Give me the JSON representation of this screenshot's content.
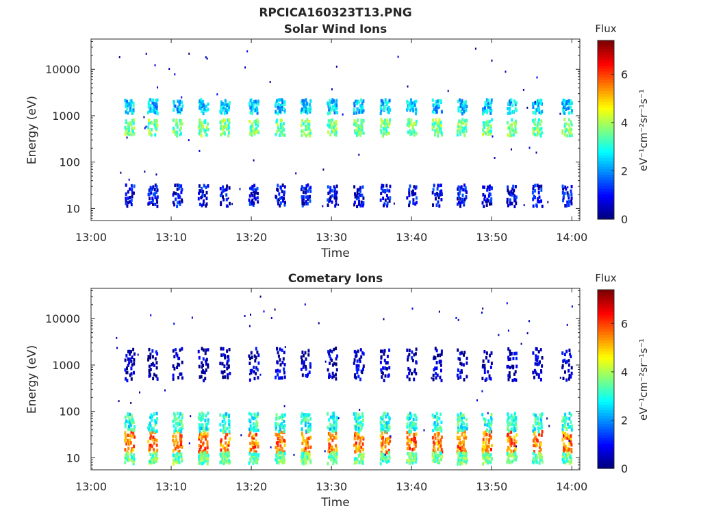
{
  "figure_title": "RPCICA160323T13.PNG",
  "panels": [
    {
      "title": "Solar Wind Ions",
      "xlabel": "Time",
      "ylabel": "Energy (eV)",
      "colorbar_title": "Flux",
      "colorbar_label": "eV⁻¹cm⁻²sr⁻¹s⁻¹"
    },
    {
      "title": "Cometary Ions",
      "xlabel": "Time",
      "ylabel": "Energy (eV)",
      "colorbar_title": "Flux",
      "colorbar_label": "eV⁻¹cm⁻²sr⁻¹s⁻¹"
    }
  ],
  "chart_data": [
    {
      "type": "heatmap",
      "title": "Solar Wind Ions",
      "xlabel": "Time",
      "ylabel": "Energy (eV)",
      "x_ticks": [
        "13:00",
        "13:10",
        "13:20",
        "13:30",
        "13:40",
        "13:50",
        "14:00"
      ],
      "xlim_minutes": [
        0,
        61
      ],
      "y_scale": "log",
      "y_ticks": [
        10,
        100,
        1000,
        10000
      ],
      "ylim": [
        5.5,
        45000
      ],
      "colorbar": {
        "title": "Flux",
        "range": [
          0,
          7.4
        ],
        "ticks": [
          0,
          2,
          4,
          6
        ],
        "colormap": "jet"
      },
      "sweep_times_min": [
        4.7,
        7.6,
        10.7,
        13.9,
        16.6,
        20.2,
        23.5,
        26.7,
        30.0,
        33.3,
        36.6,
        39.9,
        43.1,
        46.2,
        49.3,
        52.4,
        55.6,
        59.3
      ],
      "bands": [
        {
          "emin": 400,
          "emax": 900,
          "level": 3.6
        },
        {
          "emin": 1200,
          "emax": 2400,
          "level": 2.4
        },
        {
          "emin": 12,
          "emax": 35,
          "level": 0.8
        }
      ]
    },
    {
      "type": "heatmap",
      "title": "Cometary Ions",
      "xlabel": "Time",
      "ylabel": "Energy (eV)",
      "x_ticks": [
        "13:00",
        "13:10",
        "13:20",
        "13:30",
        "13:40",
        "13:50",
        "14:00"
      ],
      "xlim_minutes": [
        0,
        61
      ],
      "y_scale": "log",
      "y_ticks": [
        10,
        100,
        1000,
        10000
      ],
      "ylim": [
        5.5,
        45000
      ],
      "colorbar": {
        "title": "Flux",
        "range": [
          0,
          7.4
        ],
        "ticks": [
          0,
          2,
          4,
          6
        ],
        "colormap": "jet"
      },
      "sweep_times_min": [
        4.7,
        7.6,
        10.7,
        13.9,
        16.6,
        20.2,
        23.5,
        26.7,
        30.0,
        33.3,
        36.6,
        39.9,
        43.1,
        46.2,
        49.3,
        52.4,
        55.6,
        59.3
      ],
      "bands": [
        {
          "emin": 14,
          "emax": 40,
          "level": 5.6
        },
        {
          "emin": 40,
          "emax": 100,
          "level": 3.0
        },
        {
          "emin": 8,
          "emax": 14,
          "level": 3.5
        },
        {
          "emin": 500,
          "emax": 2500,
          "level": 0.4
        }
      ]
    }
  ]
}
